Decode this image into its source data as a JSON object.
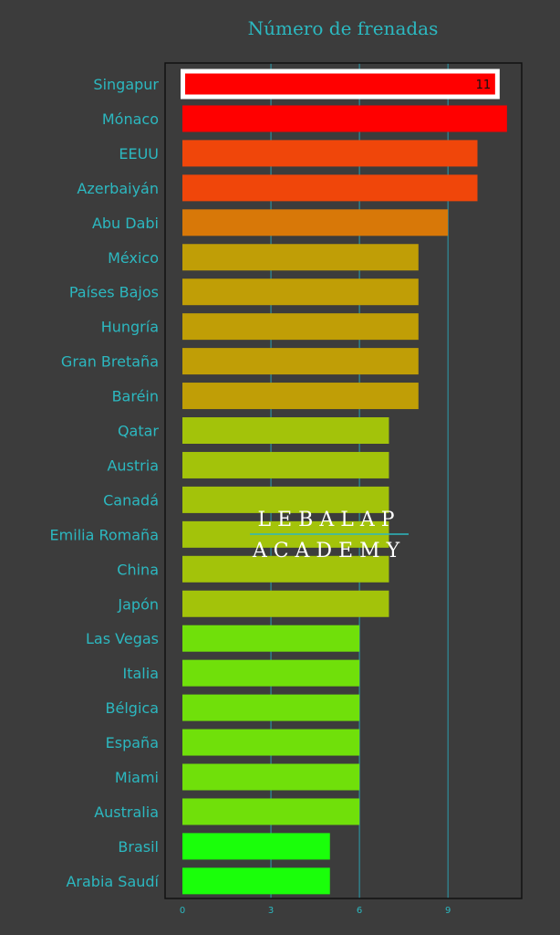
{
  "chart_data": {
    "type": "bar",
    "orientation": "horizontal",
    "title": "Número de frenadas",
    "categories": [
      "Singapur",
      "Mónaco",
      "EEUU",
      "Azerbaiyán",
      "Abu Dabi",
      "México",
      "Países Bajos",
      "Hungría",
      "Gran Bretaña",
      "Baréin",
      "Qatar",
      "Austria",
      "Canadá",
      "Emilia Romaña",
      "China",
      "Japón",
      "Las Vegas",
      "Italia",
      "Bélgica",
      "España",
      "Miami",
      "Australia",
      "Brasil",
      "Arabia Saudí"
    ],
    "values": [
      11,
      11,
      10,
      10,
      9,
      8,
      8,
      8,
      8,
      8,
      7,
      7,
      7,
      7,
      7,
      7,
      6,
      6,
      6,
      6,
      6,
      6,
      5,
      5
    ],
    "colors": [
      "#ff0000",
      "#ff0000",
      "#f0460a",
      "#f0460a",
      "#d87808",
      "#c09e06",
      "#c09e06",
      "#c09e06",
      "#c09e06",
      "#c09e06",
      "#a3c30a",
      "#a3c30a",
      "#a3c30a",
      "#a3c30a",
      "#a3c30a",
      "#a3c30a",
      "#70e00a",
      "#70e00a",
      "#70e00a",
      "#70e00a",
      "#70e00a",
      "#70e00a",
      "#1aff0a",
      "#1aff0a"
    ],
    "highlight": {
      "category": "Singapur",
      "data_label": "11"
    },
    "x_ticks": [
      "0",
      "3",
      "6",
      "9"
    ],
    "xlim": [
      0,
      11.6
    ],
    "grid": "vertical",
    "xlabel": "",
    "ylabel": ""
  },
  "watermark": {
    "line1": "LEBALAP",
    "line2": "ACADEMY"
  },
  "style": {
    "background": "#3c3c3c",
    "label_color": "#2cb8c0",
    "grid_color": "#2a9fb0",
    "border_color": "#111111",
    "watermark_color": "#ffffff"
  }
}
